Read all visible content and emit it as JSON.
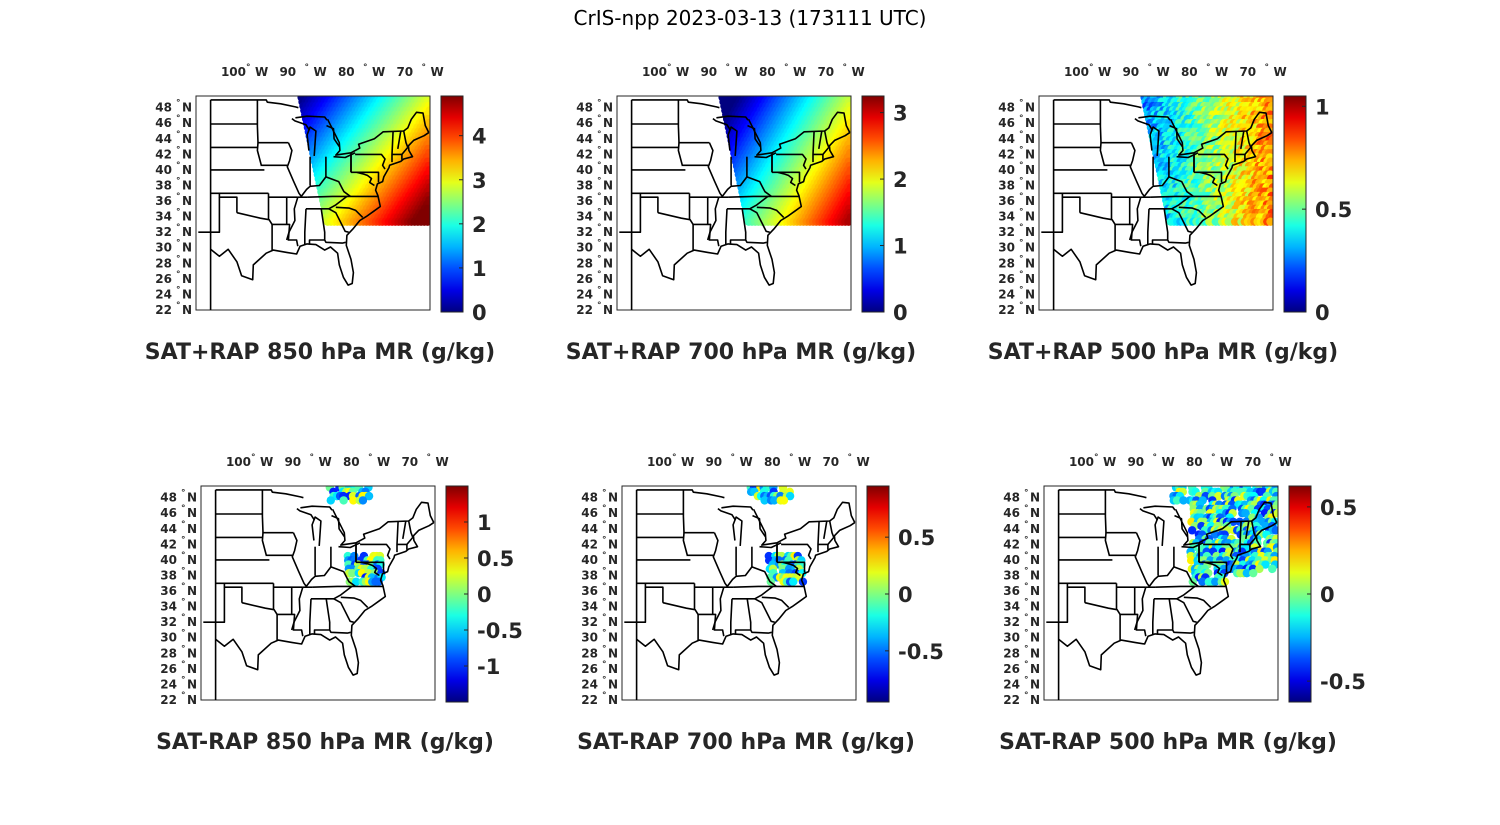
{
  "title": "CrIS-npp 2023-03-13 (173111 UTC)",
  "lon_ticks": [
    {
      "value": -100,
      "label": "100",
      "hemi": "W"
    },
    {
      "value": -90,
      "label": "90",
      "hemi": "W"
    },
    {
      "value": -80,
      "label": "80",
      "hemi": "W"
    },
    {
      "value": -70,
      "label": "70",
      "hemi": "W"
    }
  ],
  "lat_ticks": [
    {
      "value": 48,
      "label": "48",
      "hemi": "N"
    },
    {
      "value": 46,
      "label": "46",
      "hemi": "N"
    },
    {
      "value": 44,
      "label": "44",
      "hemi": "N"
    },
    {
      "value": 42,
      "label": "42",
      "hemi": "N"
    },
    {
      "value": 40,
      "label": "40",
      "hemi": "N"
    },
    {
      "value": 38,
      "label": "38",
      "hemi": "N"
    },
    {
      "value": 36,
      "label": "36",
      "hemi": "N"
    },
    {
      "value": 34,
      "label": "34",
      "hemi": "N"
    },
    {
      "value": 32,
      "label": "32",
      "hemi": "N"
    },
    {
      "value": 30,
      "label": "30",
      "hemi": "N"
    },
    {
      "value": 28,
      "label": "28",
      "hemi": "N"
    },
    {
      "value": 26,
      "label": "26",
      "hemi": "N"
    },
    {
      "value": 24,
      "label": "24",
      "hemi": "N"
    },
    {
      "value": 22,
      "label": "22",
      "hemi": "N"
    }
  ],
  "panels": [
    {
      "id": "sat-rap-sum-850",
      "caption": "SAT+RAP 850 hPa MR (g/kg)",
      "colorbar": {
        "min": 0,
        "max": 4.9,
        "ticks": [
          "0",
          "1",
          "2",
          "3",
          "4"
        ],
        "tick_values": [
          0,
          1,
          2,
          3,
          4
        ]
      }
    },
    {
      "id": "sat-rap-sum-700",
      "caption": "SAT+RAP 700 hPa MR (g/kg)",
      "colorbar": {
        "min": 0,
        "max": 3.25,
        "ticks": [
          "0",
          "1",
          "2",
          "3"
        ],
        "tick_values": [
          0,
          1,
          2,
          3
        ]
      }
    },
    {
      "id": "sat-rap-sum-500",
      "caption": "SAT+RAP 500 hPa MR (g/kg)",
      "colorbar": {
        "min": 0,
        "max": 1.05,
        "ticks": [
          "0",
          "0.5",
          "1"
        ],
        "tick_values": [
          0,
          0.5,
          1
        ]
      }
    },
    {
      "id": "sat-rap-diff-850",
      "caption": "SAT-RAP 850 hPa MR (g/kg)",
      "colorbar": {
        "min": -1.5,
        "max": 1.5,
        "ticks": [
          "-1",
          "-0.5",
          "0",
          "0.5",
          "1"
        ],
        "tick_values": [
          -1,
          -0.5,
          0,
          0.5,
          1
        ]
      }
    },
    {
      "id": "sat-rap-diff-700",
      "caption": "SAT-RAP 700 hPa MR (g/kg)",
      "colorbar": {
        "min": -0.95,
        "max": 0.95,
        "ticks": [
          "-0.5",
          "0",
          "0.5"
        ],
        "tick_values": [
          -0.5,
          0,
          0.5
        ]
      }
    },
    {
      "id": "sat-rap-diff-500",
      "caption": "SAT-RAP 500 hPa MR (g/kg)",
      "colorbar": {
        "min": -0.62,
        "max": 0.62,
        "ticks": [
          "-0.5",
          "0",
          "0.5"
        ],
        "tick_values": [
          -0.5,
          0,
          0.5
        ]
      }
    }
  ],
  "colormap": "jet"
}
